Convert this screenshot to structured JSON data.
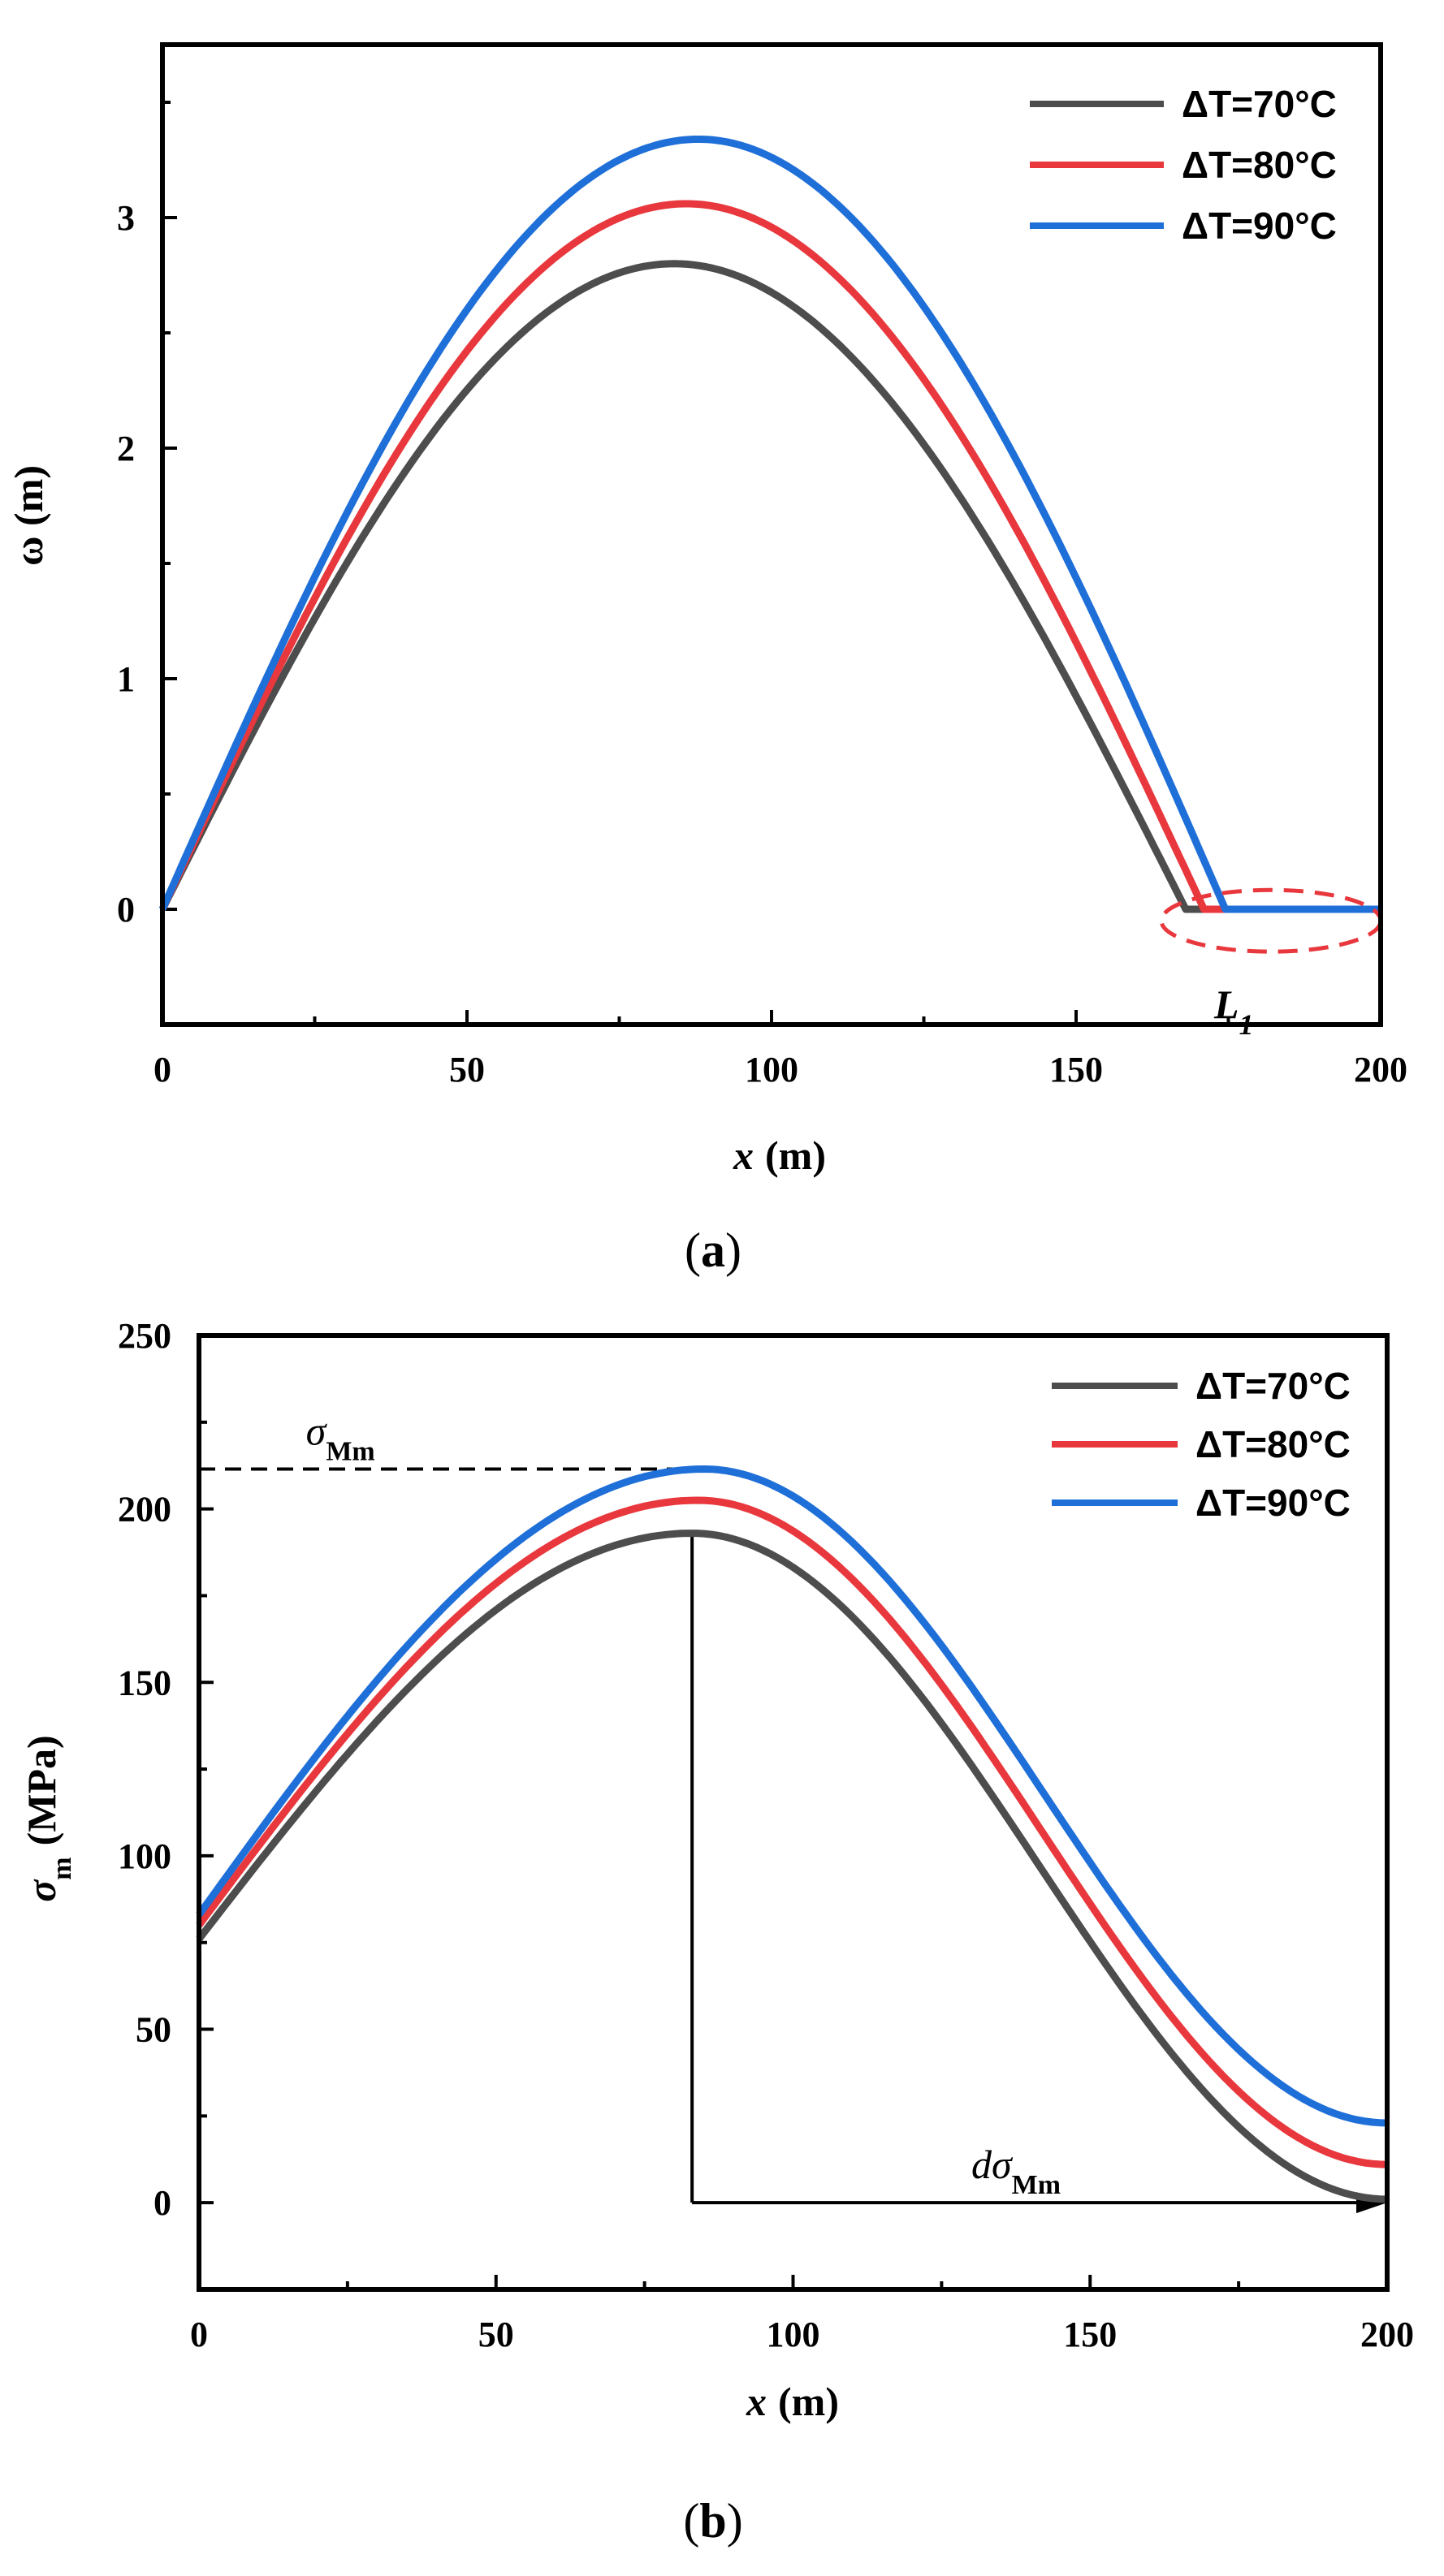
{
  "chart_data": [
    {
      "type": "line",
      "panel_label": "a",
      "xlabel": {
        "var": "x",
        "unit": "(m)"
      },
      "ylabel": "ω (m)",
      "xlim": [
        0,
        200
      ],
      "ylim": [
        -0.5,
        3.75
      ],
      "xticks": [
        0,
        50,
        100,
        150,
        200
      ],
      "yticks": [
        0,
        1,
        2,
        3
      ],
      "grid": false,
      "legend_position": "top-right",
      "series": [
        {
          "name": "ΔT=70°C",
          "color": "#4d4d4d",
          "peak_x": 84,
          "peak_y": 2.8,
          "zero_x": 168
        },
        {
          "name": "ΔT=80°C",
          "color": "#e8383d",
          "peak_x": 86,
          "peak_y": 3.06,
          "zero_x": 171
        },
        {
          "name": "ΔT=90°C",
          "color": "#1f6fd8",
          "peak_x": 88,
          "peak_y": 3.34,
          "zero_x": 174.5
        }
      ],
      "annotation": {
        "label": "L",
        "subscript": "1",
        "x_range": [
          164,
          200
        ],
        "y": -0.05,
        "color": "#e8383d"
      }
    },
    {
      "type": "line",
      "panel_label": "b",
      "xlabel": {
        "var": "x",
        "unit": "(m)"
      },
      "ylabel": {
        "var": "σ",
        "sub": "m",
        "unit": "(MPa)"
      },
      "xlim": [
        0,
        200
      ],
      "ylim": [
        -25,
        250
      ],
      "xticks": [
        0,
        50,
        100,
        150,
        200
      ],
      "yticks": [
        0,
        50,
        100,
        150,
        200,
        250
      ],
      "grid": false,
      "legend_position": "top-right",
      "series": [
        {
          "name": "ΔT=70°C",
          "color": "#4d4d4d",
          "y0": 76,
          "peak_x": 83,
          "peak_y": 193,
          "y_end": 1
        },
        {
          "name": "ΔT=80°C",
          "color": "#e8383d",
          "y0": 80,
          "peak_x": 84,
          "peak_y": 202.5,
          "y_end": 11
        },
        {
          "name": "ΔT=90°C",
          "color": "#1f6fd8",
          "y0": 83,
          "peak_x": 85,
          "peak_y": 211.5,
          "y_end": 23
        }
      ],
      "annotations": {
        "sigma_Mm": {
          "label": "σ",
          "sub": "Mm",
          "y": 211.5,
          "x_from": 0,
          "x_to": 85
        },
        "d_sigma_Mm": {
          "label": "dσ",
          "sub": "Mm",
          "x_from": 83,
          "x_to": 200,
          "y_top": 193,
          "y_base": 0
        }
      }
    }
  ]
}
